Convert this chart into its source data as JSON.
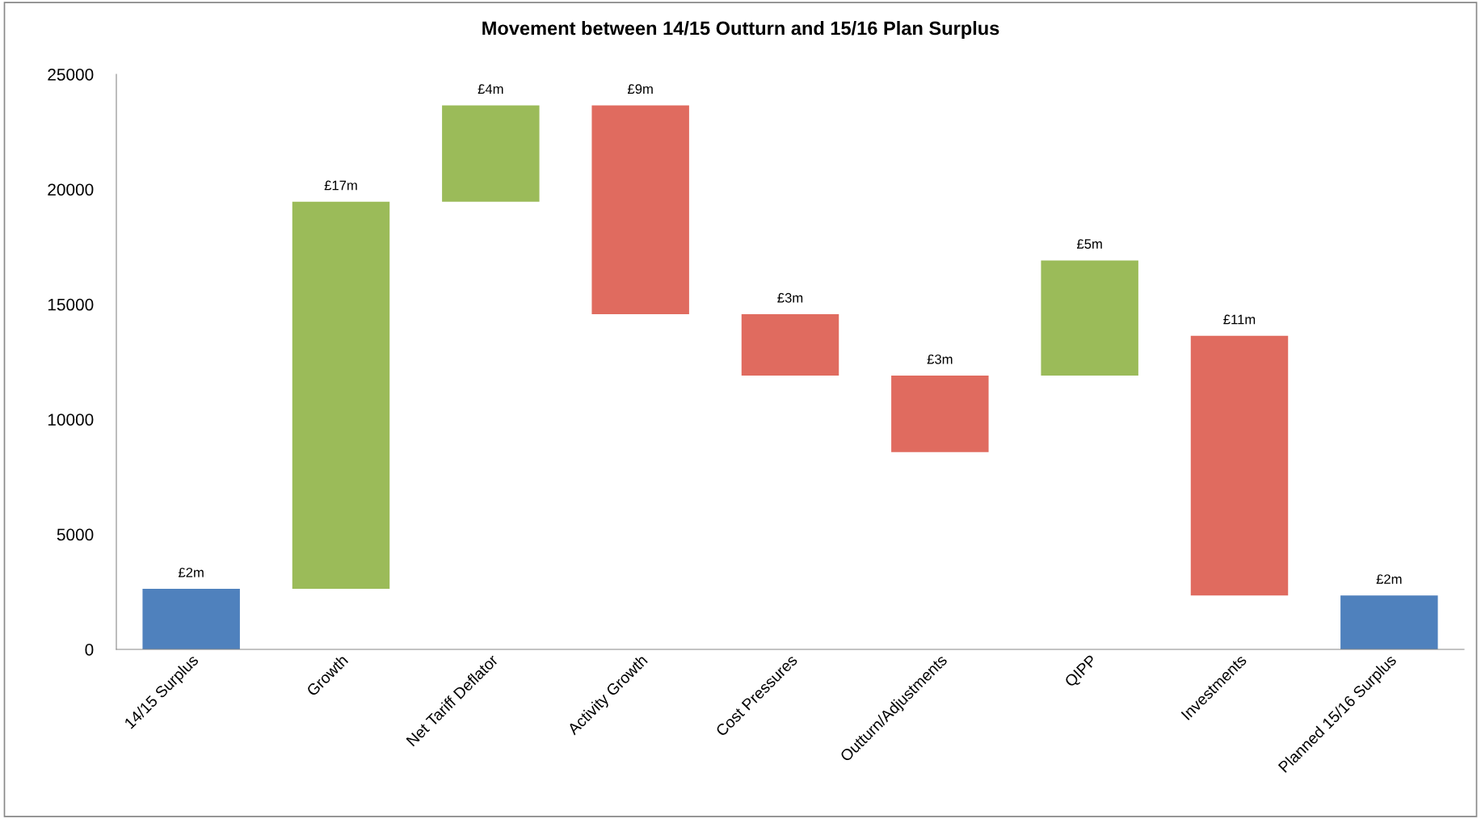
{
  "chart_data": {
    "type": "bar",
    "title": "Movement between 14/15 Outturn and 15/16 Plan Surplus",
    "categories": [
      "14/15 Surplus",
      "Growth",
      "Net Tariff Deflator",
      "Activity Growth",
      "Cost Pressures",
      "Outturn/Adjustments",
      "QIPP",
      "Investments",
      "Planned 15/16 Surplus"
    ],
    "base": [
      0,
      2630,
      19460,
      23650,
      14570,
      11900,
      11900,
      13630,
      0
    ],
    "values": [
      2630,
      16830,
      4190,
      -9080,
      -2670,
      -3320,
      5010,
      -11290,
      2340
    ],
    "colors": [
      "#4f81bd",
      "#9bbb59",
      "#9bbb59",
      "#e06b5f",
      "#e06b5f",
      "#e06b5f",
      "#9bbb59",
      "#e06b5f",
      "#4f81bd"
    ],
    "annotations": [
      {
        "text": "£2m",
        "x": "14/15 Surplus",
        "y": 2630
      },
      {
        "text": "£17m",
        "x": "Growth",
        "y": 19460
      },
      {
        "text": "£4m",
        "x": "Net Tariff Deflator",
        "y": 23650
      },
      {
        "text": "£9m",
        "x": "Activity Growth",
        "y": 23650
      },
      {
        "text": "£3m",
        "x": "Cost Pressures",
        "y": 14570
      },
      {
        "text": "£3m",
        "x": "Outturn/Adjustments",
        "y": 11900
      },
      {
        "text": "£5m",
        "x": "QIPP",
        "y": 16910
      },
      {
        "text": "£11m",
        "x": "Investments",
        "y": 13630
      },
      {
        "text": "£2m",
        "x": "Planned 15/16 Surplus",
        "y": 2340
      }
    ],
    "ylim": [
      0,
      25000
    ],
    "yticks": [
      0,
      5000,
      10000,
      15000,
      20000,
      25000
    ],
    "grid": false,
    "legend": false
  }
}
